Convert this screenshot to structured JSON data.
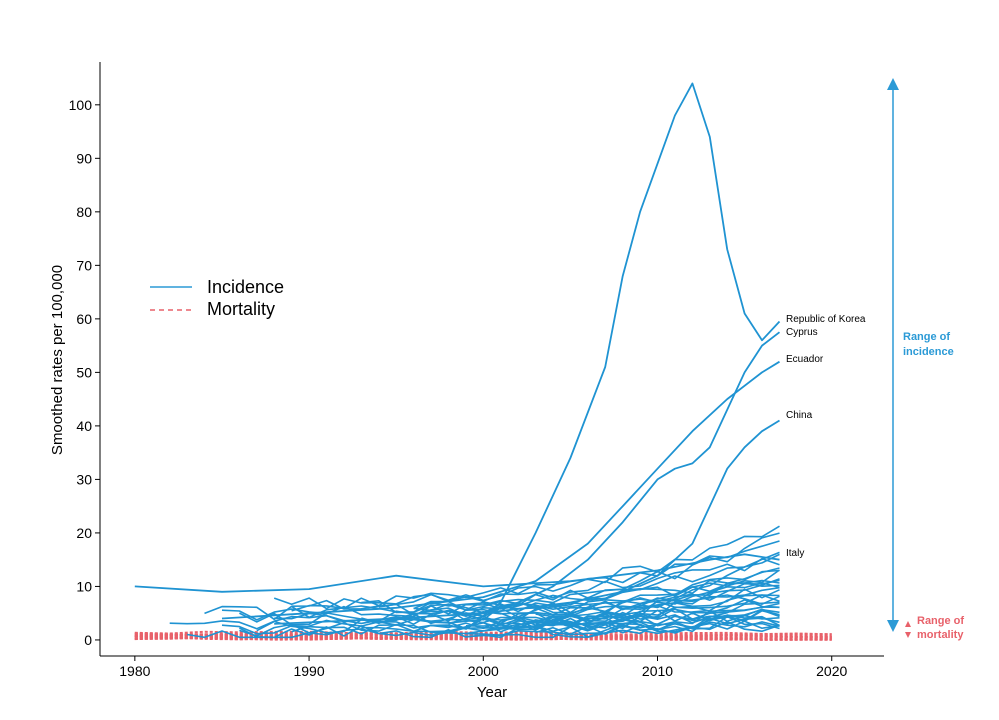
{
  "chart_data": {
    "type": "line",
    "title": "",
    "xlabel": "Year",
    "ylabel": "Smoothed rates per 100,000",
    "xlim": [
      1978,
      2023
    ],
    "ylim": [
      -3,
      108
    ],
    "x_ticks": [
      1980,
      1990,
      2000,
      2010,
      2020
    ],
    "y_ticks": [
      0,
      10,
      20,
      30,
      40,
      50,
      60,
      70,
      80,
      90,
      100
    ],
    "grid": false,
    "legend": [
      {
        "label": "Incidence",
        "style": "solid",
        "color": "#2b9ad6"
      },
      {
        "label": "Mortality",
        "style": "dashed",
        "color": "#e8616a"
      }
    ],
    "legend_position": "left",
    "colors": {
      "incidence": "#1f93d2",
      "mortality": "#e8616a",
      "text": "#000000"
    },
    "annotations": {
      "incidence_range": {
        "label_line1": "Range of",
        "label_line2": "incidence",
        "from": 0,
        "to": 105,
        "color": "#2b9ad6"
      },
      "mortality_range": {
        "label_line1": "Range of",
        "label_line2": "mortality",
        "from": 0,
        "to": 2,
        "color": "#e8616a"
      }
    },
    "highlighted_series": [
      {
        "name": "Republic of Korea",
        "x": [
          1999,
          2001,
          2003,
          2005,
          2007,
          2008,
          2009,
          2010,
          2011,
          2012,
          2013,
          2014,
          2015,
          2016,
          2017
        ],
        "values": [
          2,
          7,
          20,
          34,
          51,
          68,
          80,
          89,
          98,
          104,
          94,
          73,
          61,
          56,
          59.5
        ]
      },
      {
        "name": "Cyprus",
        "x": [
          1998,
          2000,
          2002,
          2004,
          2006,
          2008,
          2010,
          2011,
          2012,
          2013,
          2014,
          2015,
          2016,
          2017
        ],
        "values": [
          3,
          5,
          7,
          10,
          15,
          22,
          30,
          32,
          33,
          36,
          43,
          50,
          55,
          57.5
        ]
      },
      {
        "name": "Ecuador",
        "x": [
          1985,
          1990,
          1995,
          2000,
          2003,
          2006,
          2008,
          2010,
          2012,
          2014,
          2016,
          2017
        ],
        "values": [
          4,
          5,
          6,
          8,
          11,
          18,
          25,
          32,
          39,
          45,
          50,
          52
        ]
      },
      {
        "name": "China",
        "x": [
          1988,
          1995,
          2000,
          2005,
          2008,
          2010,
          2012,
          2013,
          2014,
          2015,
          2016,
          2017
        ],
        "values": [
          3,
          4,
          5,
          7,
          9,
          12,
          18,
          25,
          32,
          36,
          39,
          41
        ]
      },
      {
        "name": "Italy",
        "x": [
          1980,
          1985,
          1990,
          1995,
          2000,
          2005,
          2010,
          2013,
          2015,
          2017
        ],
        "values": [
          10,
          9,
          9.5,
          12,
          10,
          11,
          13,
          15,
          16,
          15
        ]
      }
    ],
    "other_incidence_series_count": 34,
    "country_labels": [
      "Republic of Korea",
      "Cyprus",
      "Ecuador",
      "China",
      "Italy"
    ]
  }
}
